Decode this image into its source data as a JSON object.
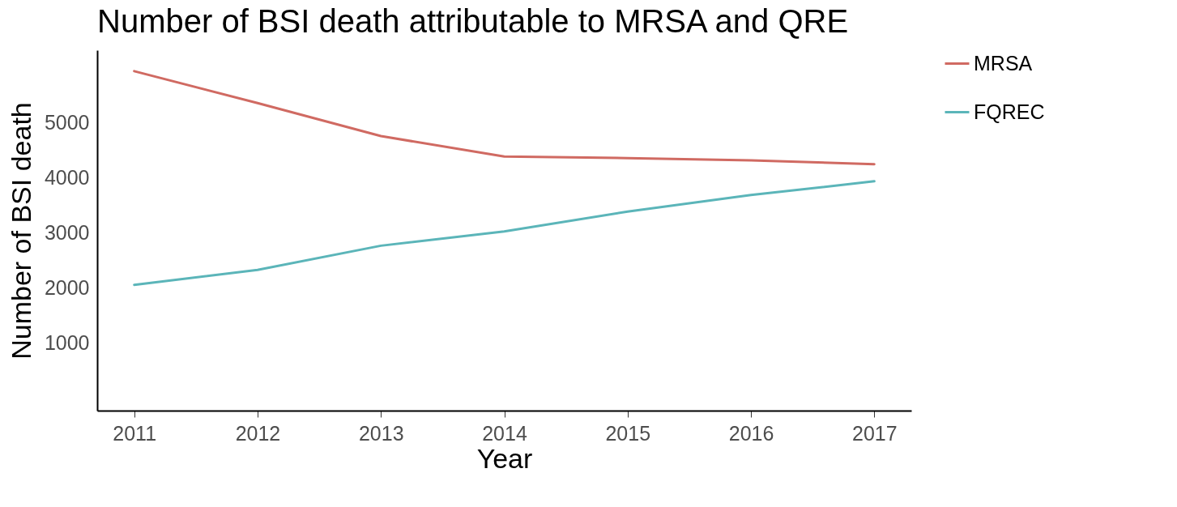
{
  "chart_data": {
    "type": "line",
    "title": "Number of BSI death attributable to MRSA and QRE",
    "xlabel": "Year",
    "ylabel": "Number of BSI death",
    "x": [
      2011,
      2012,
      2013,
      2014,
      2015,
      2016,
      2017
    ],
    "series": [
      {
        "name": "MRSA",
        "color": "#d06a62",
        "values": [
          5930,
          5350,
          4750,
          4380,
          4350,
          4310,
          4240
        ]
      },
      {
        "name": "FQREC",
        "color": "#5bb5b9",
        "values": [
          2050,
          2320,
          2760,
          3020,
          3380,
          3680,
          3930
        ]
      }
    ],
    "xlim": [
      2010.7,
      2017.3
    ],
    "xticks": [
      2011,
      2012,
      2013,
      2014,
      2015,
      2016,
      2017
    ],
    "ylim": [
      -235,
      6310
    ],
    "yticks": [
      1000,
      2000,
      3000,
      4000,
      5000
    ],
    "grid": false,
    "legend": "right"
  }
}
